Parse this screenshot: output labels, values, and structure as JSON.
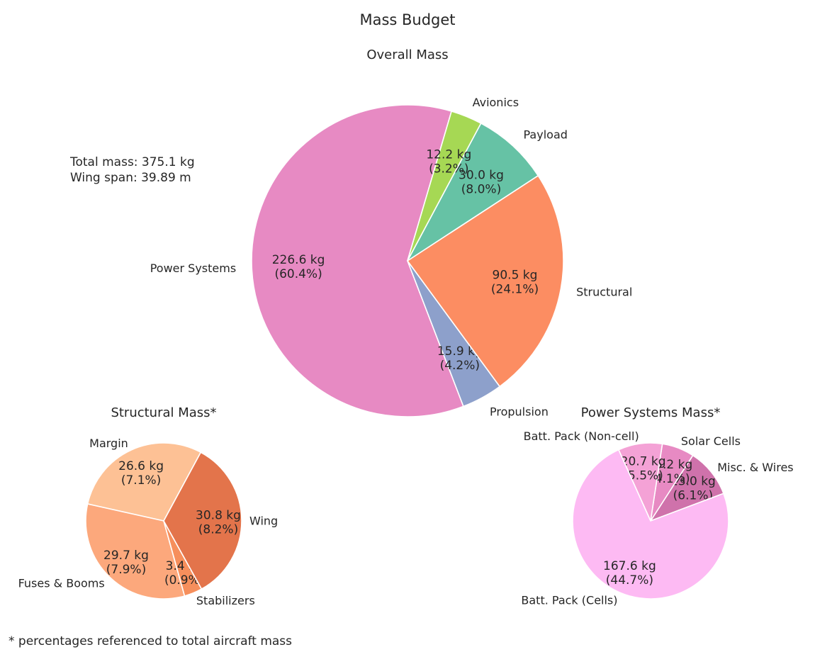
{
  "figure": {
    "title": "Mass Budget",
    "info_lines": [
      "Total mass: 375.1 kg",
      "Wing span: 39.89 m"
    ],
    "footnote": "* percentages referenced to total aircraft mass"
  },
  "chart_data": [
    {
      "type": "pie",
      "title": "Overall Mass",
      "total": 375.1,
      "slices": [
        {
          "label": "Power Systems",
          "value": 226.6,
          "value_text": "226.6 kg",
          "percent_text": "(60.4%)",
          "color": "#e78ac3"
        },
        {
          "label": "Propulsion",
          "value": 15.9,
          "value_text": "15.9 kg",
          "percent_text": "(4.2%)",
          "color": "#8da0cb"
        },
        {
          "label": "Structural",
          "value": 90.5,
          "value_text": "90.5 kg",
          "percent_text": "(24.1%)",
          "color": "#fc8d62"
        },
        {
          "label": "Payload",
          "value": 30.0,
          "value_text": "30.0 kg",
          "percent_text": "(8.0%)",
          "color": "#66c2a5"
        },
        {
          "label": "Avionics",
          "value": 12.2,
          "value_text": "12.2 kg",
          "percent_text": "(3.2%)",
          "color": "#a6d854"
        }
      ]
    },
    {
      "type": "pie",
      "title": "Structural Mass*",
      "slices": [
        {
          "label": "Margin",
          "value": 26.6,
          "value_text": "26.6 kg",
          "percent_text": "(7.1%)",
          "color": "#fdc195"
        },
        {
          "label": "Fuses & Booms",
          "value": 29.7,
          "value_text": "29.7 kg",
          "percent_text": "(7.9%)",
          "color": "#fca87c"
        },
        {
          "label": "Stabilizers",
          "value": 3.4,
          "value_text": "3.4 kg",
          "percent_text": "(0.9%)",
          "color": "#f68f5c"
        },
        {
          "label": "Wing",
          "value": 30.8,
          "value_text": "30.8 kg",
          "percent_text": "(8.2%)",
          "color": "#e3744b"
        }
      ]
    },
    {
      "type": "pie",
      "title": "Power Systems Mass*",
      "slices": [
        {
          "label": "Misc. & Wires",
          "value": 23.0,
          "value_text": "23.0 kg",
          "percent_text": "(6.1%)",
          "color": "#cf72ab"
        },
        {
          "label": "Solar Cells",
          "value": 15.2,
          "value_text": "15.2 kg",
          "percent_text": "(4.1%)",
          "color": "#e78ac3"
        },
        {
          "label": "Batt. Pack (Non-cell)",
          "value": 20.7,
          "value_text": "20.7 kg",
          "percent_text": "(5.5%)",
          "color": "#f4a2d6"
        },
        {
          "label": "Batt. Pack (Cells)",
          "value": 167.6,
          "value_text": "167.6 kg",
          "percent_text": "(44.7%)",
          "color": "#fdbaf3"
        }
      ]
    }
  ]
}
